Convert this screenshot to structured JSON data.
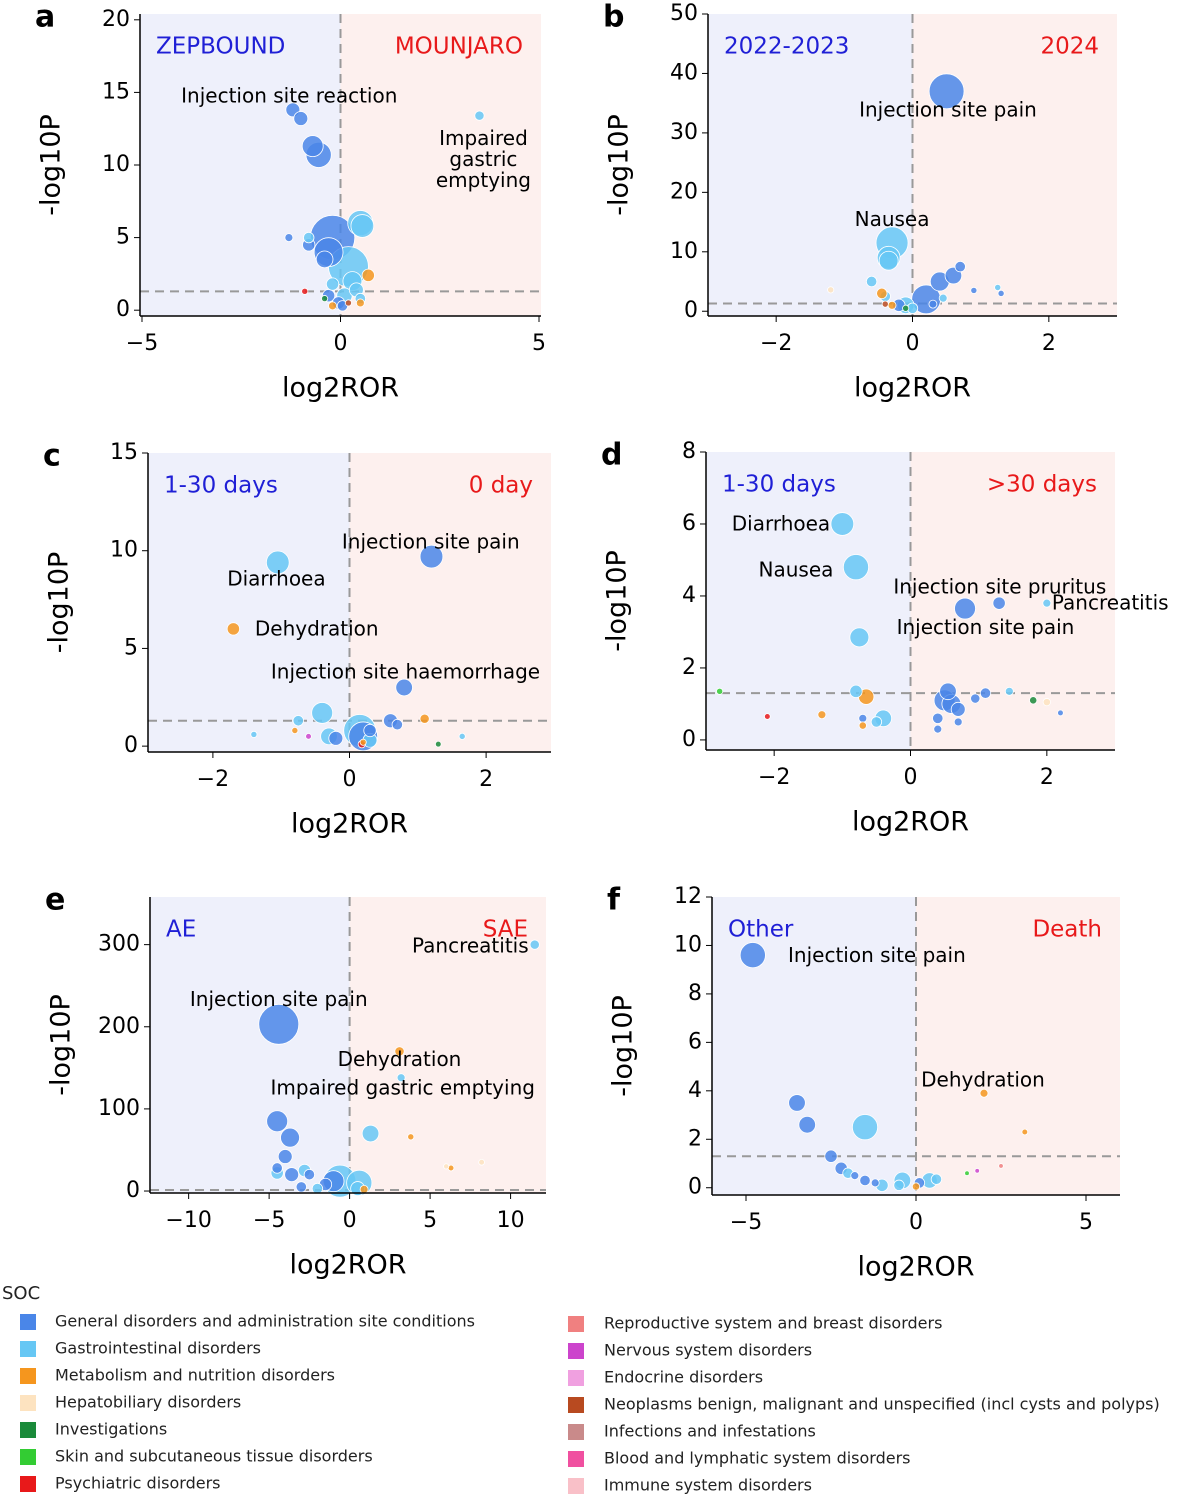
{
  "chart_data": [
    {
      "type": "scatter",
      "panel": "a",
      "xlabel": "log2ROR",
      "ylabel": "-log10P",
      "left_label": "ZEPBOUND",
      "right_label": "MOUNJARO",
      "left_color": "#1f1fd6",
      "right_color": "#e8191a",
      "threshold": 1.3,
      "xlim": [
        -5.05,
        5.05
      ],
      "ylim": [
        -0.4,
        20.4
      ],
      "xticks": [
        {
          "value": -5,
          "label": "−5"
        },
        0,
        5
      ],
      "yticks": [
        0,
        5,
        10,
        15,
        20
      ],
      "series": [
        {
          "color": "#4a86e8",
          "x": [
            -1.2,
            -1.0,
            -0.7,
            -0.55,
            -0.2,
            -0.3,
            -0.8,
            -1.3,
            -0.4,
            -0.3,
            -0.05,
            0.05
          ],
          "y": [
            13.8,
            13.2,
            11.3,
            10.7,
            5,
            4,
            4.5,
            5,
            3.5,
            1,
            0.5,
            0.3
          ],
          "sizes": [
            40,
            40,
            100,
            150,
            500,
            200,
            30,
            10,
            60,
            30,
            30,
            20
          ]
        },
        {
          "color": "#66c7f4",
          "x": [
            3.5,
            0.5,
            0.55,
            0.2,
            0.3,
            0.4,
            -0.2,
            0.1,
            -0.8,
            0.5
          ],
          "y": [
            13.4,
            6,
            5.8,
            3,
            2,
            1.4,
            1.8,
            1,
            5,
            0.8
          ],
          "sizes": [
            15,
            150,
            120,
            400,
            80,
            40,
            30,
            50,
            20,
            20
          ]
        },
        {
          "color": "#f5961e",
          "x": [
            0.7,
            0.5,
            -0.2
          ],
          "y": [
            2.4,
            0.5,
            0.3
          ],
          "sizes": [
            30,
            10,
            10
          ]
        },
        {
          "color": "#1a8a3a",
          "x": [
            -0.4
          ],
          "y": [
            0.8
          ],
          "sizes": [
            5
          ]
        },
        {
          "color": "#e8191a",
          "x": [
            -0.9
          ],
          "y": [
            1.3
          ],
          "sizes": [
            5
          ]
        },
        {
          "color": "#b84a20",
          "x": [
            0.2
          ],
          "y": [
            0.5
          ],
          "sizes": [
            5
          ]
        }
      ],
      "annotations": [
        {
          "text": "Injection site reaction",
          "x": -1.29,
          "y": 14.7
        },
        {
          "text": "Impaired\ngastric\nemptying",
          "x": 3.6,
          "y": 11.8
        }
      ]
    },
    {
      "type": "scatter",
      "panel": "b",
      "xlabel": "log2ROR",
      "ylabel": "-log10P",
      "left_label": "2022-2023",
      "right_label": "2024",
      "left_color": "#1f1fd6",
      "right_color": "#e8191a",
      "threshold": 1.3,
      "xlim": [
        -3,
        3
      ],
      "ylim": [
        -0.8,
        50
      ],
      "xticks": [
        {
          "value": -2,
          "label": "−2"
        },
        0,
        2
      ],
      "yticks": [
        0,
        10,
        20,
        30,
        40,
        50
      ],
      "series": [
        {
          "color": "#4a86e8",
          "x": [
            0.5,
            0.6,
            0.4,
            0.2,
            0.7,
            1.3,
            0.9,
            -0.2,
            0.3
          ],
          "y": [
            37,
            6,
            5,
            2,
            7.5,
            3,
            3.5,
            1,
            1.2
          ],
          "sizes": [
            300,
            60,
            80,
            200,
            20,
            5,
            5,
            30,
            10
          ]
        },
        {
          "color": "#66c7f4",
          "x": [
            -0.3,
            -0.35,
            -0.35,
            -0.6,
            -0.4,
            -0.1,
            0,
            1.25,
            0.45
          ],
          "y": [
            11.5,
            9,
            8.5,
            5,
            2.5,
            1,
            0.5,
            4,
            2.2
          ],
          "sizes": [
            250,
            120,
            80,
            20,
            20,
            60,
            20,
            5,
            10
          ]
        },
        {
          "color": "#f5961e",
          "x": [
            -0.45,
            -0.3
          ],
          "y": [
            3,
            1
          ],
          "sizes": [
            20,
            10
          ]
        },
        {
          "color": "#b84a20",
          "x": [
            -0.4
          ],
          "y": [
            1.2
          ],
          "sizes": [
            5
          ]
        },
        {
          "color": "#fde3c0",
          "x": [
            -1.2
          ],
          "y": [
            3.6
          ],
          "sizes": [
            5
          ]
        },
        {
          "color": "#1a8a3a",
          "x": [
            -0.1
          ],
          "y": [
            0.5
          ],
          "sizes": [
            5
          ]
        }
      ],
      "annotations": [
        {
          "text": "Injection site pain",
          "x": 0.52,
          "y": 33.7
        },
        {
          "text": "Nausea",
          "x": -0.3,
          "y": 15.3
        }
      ]
    },
    {
      "type": "scatter",
      "panel": "c",
      "xlabel": "log2ROR",
      "ylabel": "-log10P",
      "left_label": "1-30 days",
      "right_label": "0 day",
      "left_color": "#1f1fd6",
      "right_color": "#e8191a",
      "threshold": 1.3,
      "xlim": [
        -2.95,
        2.95
      ],
      "ylim": [
        -0.3,
        15
      ],
      "xticks": [
        {
          "value": -2,
          "label": "−2"
        },
        0,
        2
      ],
      "yticks": [
        0,
        5,
        10,
        15
      ],
      "series": [
        {
          "color": "#4a86e8",
          "x": [
            1.2,
            0.8,
            0.6,
            0.7,
            0.2,
            -0.2,
            0.3
          ],
          "y": [
            9.7,
            3,
            1.3,
            1.1,
            0.5,
            0.4,
            0.8
          ],
          "sizes": [
            120,
            60,
            40,
            20,
            200,
            40,
            30
          ]
        },
        {
          "color": "#66c7f4",
          "x": [
            -1.05,
            -0.4,
            0.15,
            -0.3,
            -0.75,
            0.3,
            -1.4,
            1.65
          ],
          "y": [
            9.4,
            1.7,
            0.8,
            0.5,
            1.3,
            0.3,
            0.6,
            0.5
          ],
          "sizes": [
            120,
            100,
            250,
            60,
            20,
            40,
            5,
            5
          ]
        },
        {
          "color": "#f5961e",
          "x": [
            -1.7,
            1.1,
            -0.8,
            0.2
          ],
          "y": [
            6,
            1.4,
            0.8,
            0.2
          ],
          "sizes": [
            30,
            15,
            5,
            5
          ]
        },
        {
          "color": "#e8191a",
          "x": [
            0.18
          ],
          "y": [
            0.1
          ],
          "sizes": [
            8
          ]
        },
        {
          "color": "#1a8a3a",
          "x": [
            1.3
          ],
          "y": [
            0.1
          ],
          "sizes": [
            4
          ]
        },
        {
          "color": "#cc44cc",
          "x": [
            -0.6
          ],
          "y": [
            0.5
          ],
          "sizes": [
            4
          ]
        }
      ],
      "annotations": [
        {
          "text": "Injection site pain",
          "x": 1.19,
          "y": 10.4
        },
        {
          "text": "Diarrhoea",
          "x": -1.07,
          "y": 8.5
        },
        {
          "text": "Dehydration",
          "x": -0.48,
          "y": 5.95
        },
        {
          "text": "Injection site haemorrhage",
          "x": 0.82,
          "y": 3.74
        }
      ]
    },
    {
      "type": "scatter",
      "panel": "d",
      "xlabel": "log2ROR",
      "ylabel": "-log10P",
      "left_label": "1-30 days",
      "right_label": ">30 days",
      "left_color": "#1f1fd6",
      "right_color": "#e8191a",
      "threshold": 1.3,
      "xlim": [
        -3,
        3
      ],
      "ylim": [
        -0.28,
        8
      ],
      "xticks": [
        {
          "value": -2,
          "label": "−2"
        },
        0,
        2
      ],
      "yticks": [
        0,
        2,
        4,
        6,
        8
      ],
      "series": [
        {
          "color": "#66c7f4",
          "x": [
            -1.0,
            -0.8,
            -0.75,
            2.0,
            -0.8,
            -0.4,
            -0.5,
            1.45
          ],
          "y": [
            6,
            4.8,
            2.85,
            3.8,
            1.35,
            0.6,
            0.5,
            1.35
          ],
          "sizes": [
            120,
            150,
            80,
            10,
            30,
            60,
            20,
            10
          ]
        },
        {
          "color": "#4a86e8",
          "x": [
            0.8,
            1.3,
            0.55,
            0.5,
            0.6,
            0.7,
            0.4,
            1.1,
            0.95,
            0.4,
            0.7,
            2.2,
            -0.7
          ],
          "y": [
            3.65,
            3.8,
            1.35,
            1.1,
            1,
            0.85,
            0.6,
            1.3,
            1.15,
            0.3,
            0.5,
            0.75,
            0.6
          ],
          "sizes": [
            100,
            30,
            60,
            100,
            80,
            40,
            20,
            20,
            15,
            10,
            10,
            4,
            10
          ]
        },
        {
          "color": "#f5961e",
          "x": [
            -0.65,
            -1.3,
            -0.7
          ],
          "y": [
            1.2,
            0.7,
            0.4
          ],
          "sizes": [
            50,
            10,
            8
          ]
        },
        {
          "color": "#1a8a3a",
          "x": [
            1.8
          ],
          "y": [
            1.1
          ],
          "sizes": [
            8
          ]
        },
        {
          "color": "#33cc33",
          "x": [
            -2.8
          ],
          "y": [
            1.35
          ],
          "sizes": [
            5
          ]
        },
        {
          "color": "#e8191a",
          "x": [
            -2.1
          ],
          "y": [
            0.65
          ],
          "sizes": [
            4
          ]
        },
        {
          "color": "#fde3c0",
          "x": [
            2.0
          ],
          "y": [
            1.05
          ],
          "sizes": [
            8
          ]
        }
      ],
      "annotations": [
        {
          "text": "Diarrhoea",
          "x": -1.9,
          "y": 5.97
        },
        {
          "text": "Nausea",
          "x": -1.68,
          "y": 4.69
        },
        {
          "text": "Injection site pruritus",
          "x": 1.31,
          "y": 4.22
        },
        {
          "text": "Pancreatitis",
          "x": 2.93,
          "y": 3.78
        },
        {
          "text": "Injection site pain",
          "x": 1.1,
          "y": 3.1
        }
      ]
    },
    {
      "type": "scatter",
      "panel": "e",
      "xlabel": "log2ROR",
      "ylabel": "-log10P",
      "left_label": "AE",
      "right_label": "SAE",
      "left_color": "#1f1fd6",
      "right_color": "#e8191a",
      "threshold": 1.3,
      "xlim": [
        -12.4,
        12.2
      ],
      "ylim": [
        -2.4,
        358
      ],
      "xticks": [
        {
          "value": -10,
          "label": "−10"
        },
        {
          "value": -5,
          "label": "−5"
        },
        0,
        5,
        10
      ],
      "yticks": [
        0,
        100,
        200,
        300
      ],
      "series": [
        {
          "color": "#4a86e8",
          "x": [
            -4.4,
            -4.5,
            -3.7,
            -4.0,
            -3.6,
            -4.5,
            -1,
            -2.5,
            -1.5,
            -3
          ],
          "y": [
            203,
            85,
            65,
            42,
            20,
            28,
            12,
            20,
            8,
            5
          ],
          "sizes": [
            400,
            100,
            80,
            40,
            40,
            20,
            100,
            20,
            30,
            20
          ]
        },
        {
          "color": "#66c7f4",
          "x": [
            -0.6,
            0.6,
            1.3,
            11.5,
            3.2,
            -4.5,
            -2.8,
            0.5,
            -2
          ],
          "y": [
            12,
            10,
            70,
            300,
            138,
            22,
            25,
            3,
            3
          ],
          "sizes": [
            250,
            150,
            60,
            15,
            10,
            30,
            30,
            40,
            20
          ]
        },
        {
          "color": "#f5961e",
          "x": [
            3.1,
            3.8,
            0.9,
            6.3
          ],
          "y": [
            170,
            66,
            2,
            28
          ],
          "sizes": [
            15,
            5,
            10,
            4
          ]
        },
        {
          "color": "#fde3c0",
          "x": [
            8.2,
            6
          ],
          "y": [
            35,
            30
          ],
          "sizes": [
            4,
            3
          ]
        }
      ],
      "annotations": [
        {
          "text": "Pancreatitis",
          "x": 7.5,
          "y": 297
        },
        {
          "text": "Injection site pain",
          "x": -4.4,
          "y": 232
        },
        {
          "text": "Dehydration",
          "x": 3.1,
          "y": 159
        },
        {
          "text": "Impaired gastric emptying",
          "x": 3.3,
          "y": 124
        }
      ]
    },
    {
      "type": "scatter",
      "panel": "f",
      "xlabel": "log2ROR",
      "ylabel": "-log10P",
      "left_label": "Other",
      "right_label": "Death",
      "left_color": "#1f1fd6",
      "right_color": "#e8191a",
      "threshold": 1.3,
      "xlim": [
        -6,
        6
      ],
      "ylim": [
        -0.3,
        12
      ],
      "xticks": [
        {
          "value": -5,
          "label": "−5"
        },
        0,
        5
      ],
      "yticks": [
        0,
        2,
        4,
        6,
        8,
        10,
        12
      ],
      "series": [
        {
          "color": "#4a86e8",
          "x": [
            -4.8,
            -3.5,
            -3.2,
            -2.5,
            -2.2,
            -1.8,
            -1.5,
            -1.2,
            0.1
          ],
          "y": [
            9.6,
            3.5,
            2.6,
            1.3,
            0.8,
            0.5,
            0.3,
            0.2,
            0.2
          ],
          "sizes": [
            150,
            60,
            60,
            30,
            30,
            10,
            20,
            10,
            20
          ]
        },
        {
          "color": "#66c7f4",
          "x": [
            -1.5,
            -2,
            -1,
            -0.4,
            -0.5,
            0.4,
            0.6
          ],
          "y": [
            2.5,
            0.6,
            0.1,
            0.3,
            0.1,
            0.3,
            0.35
          ],
          "sizes": [
            150,
            20,
            30,
            60,
            20,
            50,
            20
          ]
        },
        {
          "color": "#f5961e",
          "x": [
            2,
            3.2,
            0
          ],
          "y": [
            3.9,
            2.3,
            0.05
          ],
          "sizes": [
            10,
            4,
            8
          ]
        },
        {
          "color": "#33cc33",
          "x": [
            1.5
          ],
          "y": [
            0.6
          ],
          "sizes": [
            2
          ]
        },
        {
          "color": "#f08080",
          "x": [
            2.5
          ],
          "y": [
            0.9
          ],
          "sizes": [
            2
          ]
        },
        {
          "color": "#cc44cc",
          "x": [
            1.8
          ],
          "y": [
            0.7
          ],
          "sizes": [
            2
          ]
        }
      ],
      "annotations": [
        {
          "text": "Injection site pain",
          "x": -1.15,
          "y": 9.55
        },
        {
          "text": "Dehydration",
          "x": 1.97,
          "y": 4.4
        }
      ]
    }
  ],
  "legend": {
    "title": "SOC",
    "items": [
      "General disorders and administration site conditions",
      "Gastrointestinal disorders",
      "Metabolism and nutrition disorders",
      "Hepatobiliary disorders",
      "Investigations",
      "Skin and subcutaneous tissue disorders",
      "Psychiatric disorders",
      "Reproductive system and breast disorders",
      "Nervous system disorders",
      "Endocrine disorders",
      "Neoplasms benign, malignant and unspecified (incl cysts and polyps)",
      "Infections and infestations",
      "Blood and lymphatic system disorders",
      "Immune system disorders"
    ],
    "colors": [
      "#4a86e8",
      "#66c7f4",
      "#f5961e",
      "#fde3c0",
      "#1a8a3a",
      "#33cc33",
      "#e8191a",
      "#f08080",
      "#cc44cc",
      "#f0a0e0",
      "#b84a20",
      "#c98a8a",
      "#f050a0",
      "#f9c0c8"
    ]
  }
}
